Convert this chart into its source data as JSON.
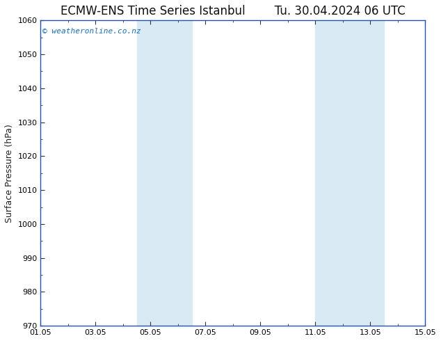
{
  "title": "ECMW-ENS Time Series Istanbul",
  "title2": "Tu. 30.04.2024 06 UTC",
  "ylabel": "Surface Pressure (hPa)",
  "ylim": [
    970,
    1060
  ],
  "yticks": [
    970,
    980,
    990,
    1000,
    1010,
    1020,
    1030,
    1040,
    1050,
    1060
  ],
  "xlim": [
    0,
    14
  ],
  "xtick_labels": [
    "01.05",
    "03.05",
    "05.05",
    "07.05",
    "09.05",
    "11.05",
    "13.05",
    "15.05"
  ],
  "xtick_positions": [
    0,
    2,
    4,
    6,
    8,
    10,
    12,
    14
  ],
  "shaded_bands": [
    {
      "x_start": 3.5,
      "x_end": 5.5
    },
    {
      "x_start": 10.0,
      "x_end": 12.5
    }
  ],
  "shade_color": "#daeaf5",
  "watermark": "© weatheronline.co.nz",
  "watermark_color": "#1a6eb5",
  "bg_color": "#ffffff",
  "plot_bg_color": "#ffffff",
  "spine_color": "#2255aa",
  "title_fontsize": 12,
  "axis_fontsize": 9,
  "tick_fontsize": 8,
  "watermark_fontsize": 8
}
